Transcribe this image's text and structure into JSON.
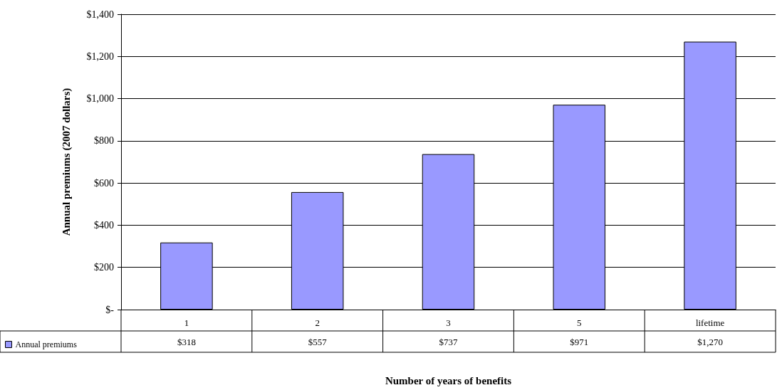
{
  "chart_data": {
    "type": "bar",
    "ylabel": "Annual premiums (2007 dollars)",
    "xlabel": "Number of years of benefits",
    "categories": [
      "1",
      "2",
      "3",
      "5",
      "lifetime"
    ],
    "series": [
      {
        "name": "Annual premiums",
        "color": "#9999ff",
        "values": [
          318,
          557,
          737,
          971,
          1270
        ],
        "value_labels": [
          "$318",
          "$557",
          "$737",
          "$971",
          "$1,270"
        ]
      }
    ],
    "ylim": [
      0,
      1400
    ],
    "yticks": [
      {
        "value": 0,
        "label": "$-"
      },
      {
        "value": 200,
        "label": "$200"
      },
      {
        "value": 400,
        "label": "$400"
      },
      {
        "value": 600,
        "label": "$600"
      },
      {
        "value": 800,
        "label": "$800"
      },
      {
        "value": 1000,
        "label": "$1,000"
      },
      {
        "value": 1200,
        "label": "$1,200"
      },
      {
        "value": 1400,
        "label": "$1,400"
      }
    ],
    "grid": "y",
    "legend": "bottom left"
  }
}
